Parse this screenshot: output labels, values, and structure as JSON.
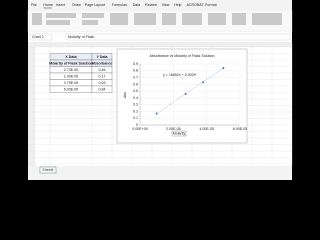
{
  "app": {
    "tabs": [
      "File",
      "Home",
      "Insert",
      "Draw",
      "Page Layout",
      "Formulas",
      "Data",
      "Review",
      "View",
      "Help",
      "ACROBAT",
      "Format"
    ],
    "name_box": "Chart 2",
    "formula": "Molarity of Flask",
    "sheet_tab": "Sheet1"
  },
  "table": {
    "header": [
      [
        "X Data",
        "Y Data"
      ],
      [
        "Molarity of Flask Solution",
        "Absorbance"
      ]
    ],
    "rows": [
      [
        "2.73E-05",
        "0.46"
      ],
      [
        "1.00E-05",
        "0.17"
      ],
      [
        "3.79E-05",
        "0.63"
      ],
      [
        "5.00E-05",
        "0.84"
      ]
    ]
  },
  "chart_data": {
    "type": "scatter",
    "title": "Absorbance vs Molarity of Flask Solution",
    "annotation": "y = 16652x + 0.0029",
    "xlabel": "Molarity",
    "ylabel": "Abs",
    "series": [
      {
        "name": "Absorbance",
        "color": "#4472c4",
        "x": [
          2.73e-05,
          1e-05,
          3.79e-05,
          5e-05
        ],
        "values": [
          0.46,
          0.17,
          0.63,
          0.84
        ]
      }
    ],
    "xlim": [
      0,
      6e-05
    ],
    "xticks": [
      {
        "value": 0,
        "label": "0.00E+00"
      },
      {
        "value": 2e-05,
        "label": "2.00E-05"
      },
      {
        "value": 4e-05,
        "label": "4.00E-05"
      },
      {
        "value": 6e-05,
        "label": "6.00E-05"
      }
    ],
    "ylim": [
      0,
      0.9
    ],
    "yticks": [
      0,
      0.1,
      0.2,
      0.3,
      0.4,
      0.5,
      0.6,
      0.7,
      0.8,
      0.9
    ],
    "grid": true,
    "trendline": true
  }
}
